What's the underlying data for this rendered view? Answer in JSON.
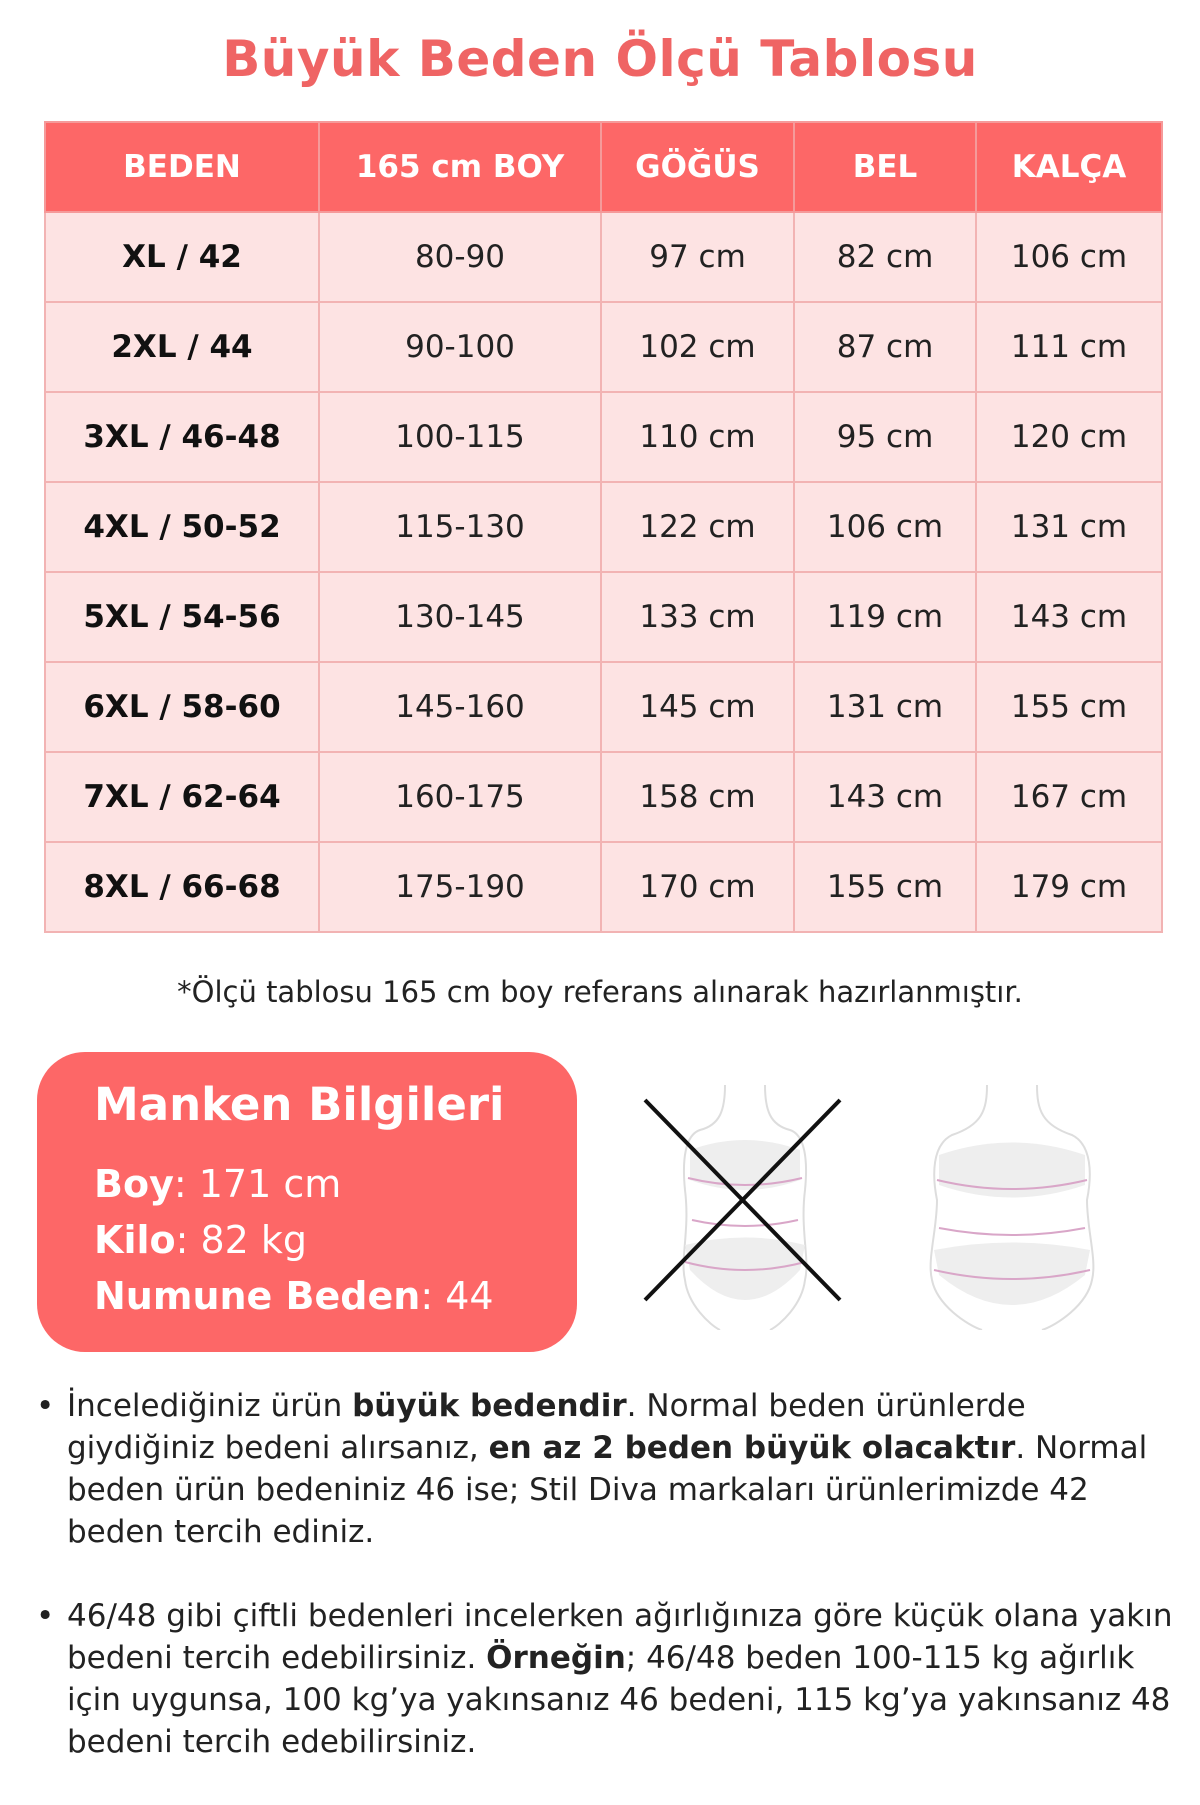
{
  "title": "Büyük Beden Ölçü Tablosu",
  "table": {
    "headers": [
      "BEDEN",
      "165 cm BOY",
      "GÖĞÜS",
      "BEL",
      "KALÇA"
    ],
    "rows": [
      [
        "XL / 42",
        "80-90",
        "97 cm",
        "82 cm",
        "106 cm"
      ],
      [
        "2XL / 44",
        "90-100",
        "102 cm",
        "87 cm",
        "111 cm"
      ],
      [
        "3XL / 46-48",
        "100-115",
        "110 cm",
        "95 cm",
        "120 cm"
      ],
      [
        "4XL / 50-52",
        "115-130",
        "122 cm",
        "106 cm",
        "131 cm"
      ],
      [
        "5XL / 54-56",
        "130-145",
        "133 cm",
        "119 cm",
        "143 cm"
      ],
      [
        "6XL / 58-60",
        "145-160",
        "145 cm",
        "131 cm",
        "155 cm"
      ],
      [
        "7XL / 62-64",
        "160-175",
        "158 cm",
        "143 cm",
        "167 cm"
      ],
      [
        "8XL / 66-68",
        "175-190",
        "170 cm",
        "155 cm",
        "179 cm"
      ]
    ]
  },
  "note": "*Ölçü tablosu 165 cm boy referans alınarak hazırlanmıştır.",
  "model": {
    "title": "Manken Bilgileri",
    "height_label": "Boy",
    "height_value": ": 171 cm",
    "weight_label": "Kilo",
    "weight_value": ": 82 kg",
    "size_label": "Numune Beden",
    "size_value": ": 44"
  },
  "figures": {
    "wrong_icon": "crossed-out-body-figure",
    "right_icon": "body-figure"
  },
  "bullets": [
    {
      "p1": "İncelediğiniz ürün ",
      "b1": "büyük bedendir",
      "p2": ". Normal beden ürünlerde giydiğiniz bedeni alırsanız, ",
      "b2": "en az 2 beden büyük olacaktır",
      "p3": ". Normal beden ürün bedeniniz 46 ise; Stil Diva markaları ürünlerimizde 42 beden tercih ediniz."
    },
    {
      "p1": "46/48 gibi çiftli bedenleri incelerken ağırlığınıza göre küçük olana yakın bedeni tercih edebilirsiniz. ",
      "b1": "Örneğin",
      "p2": "; 46/48 beden 100-115 kg ağırlık için uygunsa, 100 kg’ya yakınsanız 46 bedeni, 115 kg’ya yakınsanız 48 bedeni tercih edebilirsiniz.",
      "b2": "",
      "p3": ""
    }
  ],
  "colors": {
    "accent": "#fd6767",
    "title": "#ef6464",
    "cell": "#fde3e3"
  }
}
